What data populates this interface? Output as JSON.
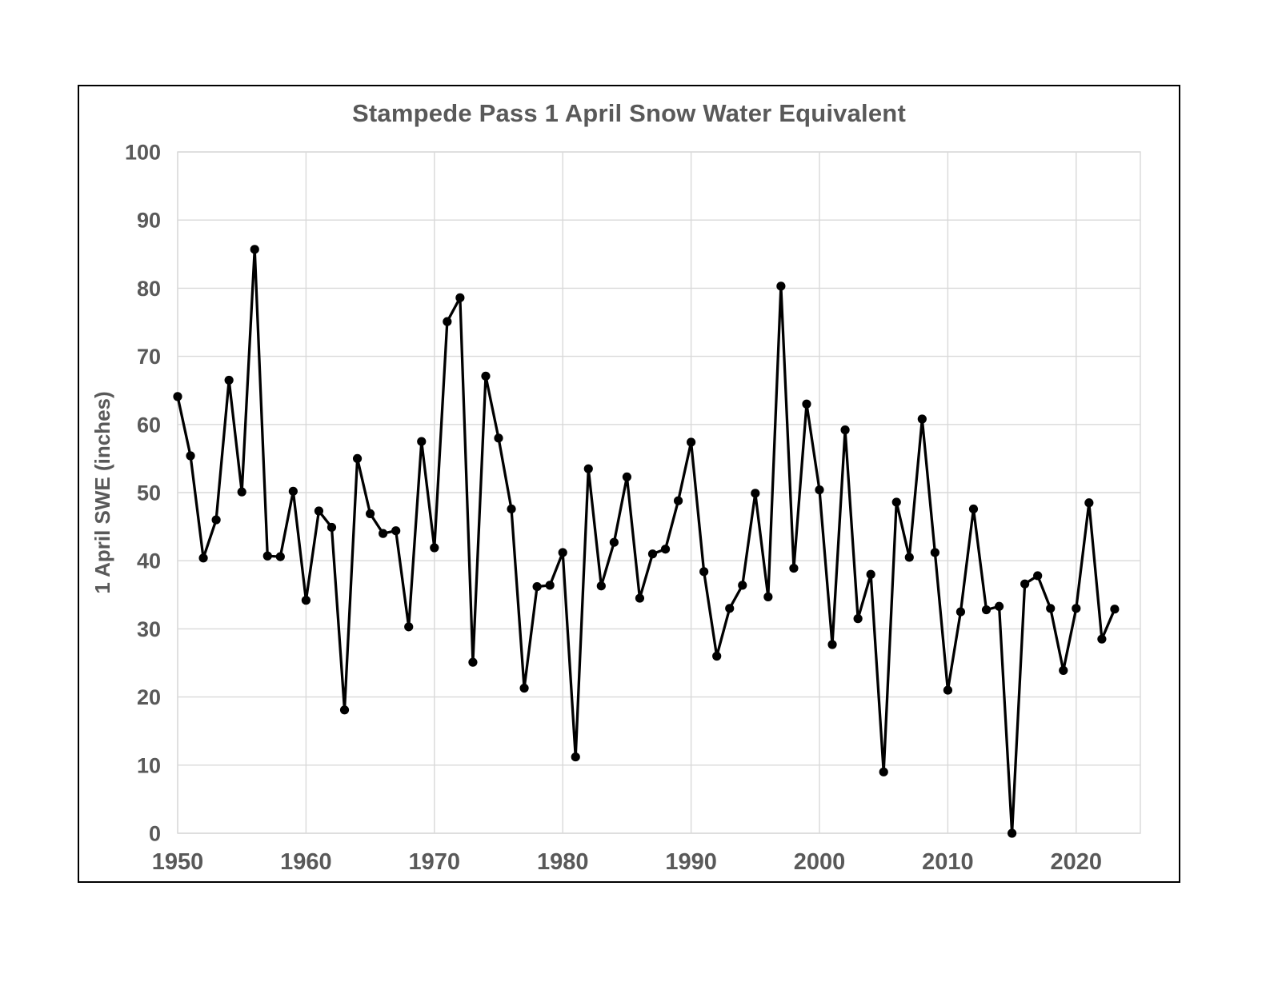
{
  "page": {
    "title": "Stampede Pass 1 April Snow Water Equivalent"
  },
  "chart_data": {
    "type": "line",
    "title": "Stampede Pass 1 April Snow Water Equivalent",
    "xlabel": "",
    "ylabel": "1 April SWE (inches)",
    "series_name": "1 April SWE",
    "x": [
      1950,
      1951,
      1952,
      1953,
      1954,
      1955,
      1956,
      1957,
      1958,
      1959,
      1960,
      1961,
      1962,
      1963,
      1964,
      1965,
      1966,
      1967,
      1968,
      1969,
      1970,
      1971,
      1972,
      1973,
      1974,
      1975,
      1976,
      1977,
      1978,
      1979,
      1980,
      1981,
      1982,
      1983,
      1984,
      1985,
      1986,
      1987,
      1988,
      1989,
      1990,
      1991,
      1992,
      1993,
      1994,
      1995,
      1996,
      1997,
      1998,
      1999,
      2000,
      2001,
      2002,
      2003,
      2004,
      2005,
      2006,
      2007,
      2008,
      2009,
      2010,
      2011,
      2012,
      2013,
      2014,
      2015,
      2016,
      2017,
      2018,
      2019,
      2020,
      2021,
      2022,
      2023
    ],
    "values": [
      64.1,
      55.4,
      40.4,
      46.0,
      66.5,
      50.1,
      85.7,
      40.7,
      40.6,
      50.2,
      34.2,
      47.3,
      44.9,
      18.1,
      55.0,
      46.9,
      44.0,
      44.4,
      30.3,
      57.5,
      41.9,
      75.1,
      78.6,
      25.1,
      67.1,
      58.0,
      47.6,
      21.3,
      36.2,
      36.4,
      41.2,
      11.2,
      53.5,
      36.3,
      42.7,
      52.3,
      34.5,
      41.0,
      41.7,
      48.8,
      57.4,
      38.4,
      26.0,
      33.0,
      36.4,
      49.9,
      34.7,
      80.3,
      38.9,
      63.0,
      50.4,
      27.7,
      59.2,
      31.5,
      38.0,
      9.0,
      48.6,
      40.5,
      60.8,
      41.2,
      21.0,
      32.5,
      47.6,
      32.8,
      33.3,
      0.0,
      36.6,
      37.8,
      33.0,
      23.9,
      33.0,
      48.5,
      28.5,
      32.9
    ],
    "xlim": [
      1950,
      2025
    ],
    "ylim": [
      0,
      100
    ],
    "x_ticks": [
      1950,
      1960,
      1970,
      1980,
      1990,
      2000,
      2010,
      2020
    ],
    "y_ticks": [
      0,
      10,
      20,
      30,
      40,
      50,
      60,
      70,
      80,
      90,
      100
    ],
    "grid": true,
    "legend": false,
    "marker": "circle",
    "colors": {
      "line": "#000000",
      "marker": "#000000",
      "grid": "#d9d9d9",
      "text": "#595959",
      "frame_border": "#000000",
      "background": "#ffffff"
    }
  }
}
